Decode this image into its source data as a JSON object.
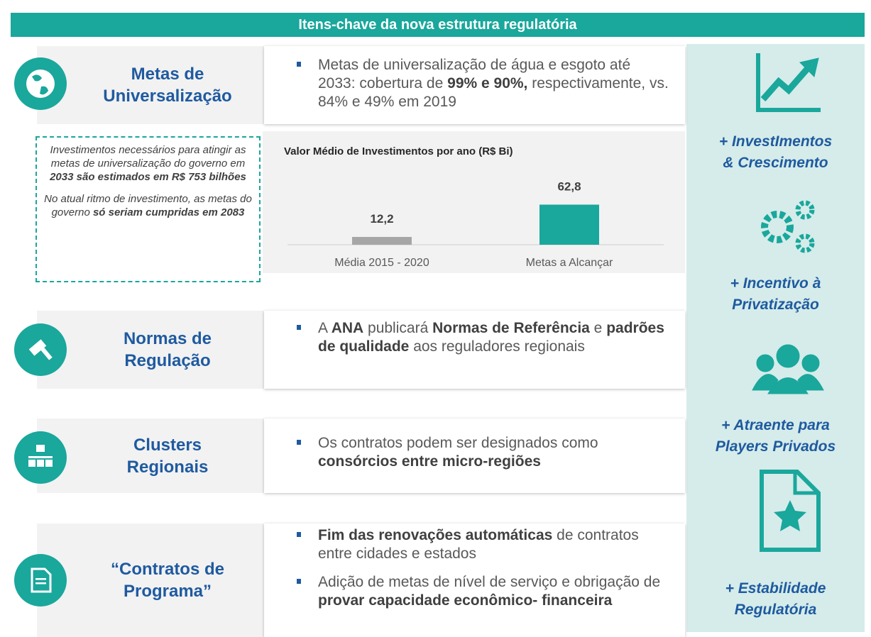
{
  "header": {
    "title": "Itens-chave da nova estrutura regulatória"
  },
  "sections": [
    {
      "title": [
        "Metas de",
        "Universalização"
      ],
      "bullets": [
        [
          {
            "text": "Metas de universalização de água e esgoto até 2033: cobertura de ",
            "bold": false
          },
          {
            "text": "99% e 90%,",
            "bold": true
          },
          {
            "text": " respectivamente, vs. 84% e 49% em 2019",
            "bold": false
          }
        ]
      ]
    },
    {
      "title": [
        "Normas de",
        "Regulação"
      ],
      "bullets": [
        [
          {
            "text": "A ",
            "bold": false
          },
          {
            "text": "ANA",
            "bold": true
          },
          {
            "text": " publicará  ",
            "bold": false
          },
          {
            "text": "Normas de Referência",
            "bold": true
          },
          {
            "text": " e ",
            "bold": false
          },
          {
            "text": "padrões de qualidade",
            "bold": true
          },
          {
            "text": " aos reguladores regionais",
            "bold": false
          }
        ]
      ]
    },
    {
      "title": [
        "Clusters",
        "Regionais"
      ],
      "bullets": [
        [
          {
            "text": "Os contratos podem ser designados como ",
            "bold": false
          },
          {
            "text": "consórcios entre micro-regiões",
            "bold": true
          }
        ]
      ]
    },
    {
      "title": [
        "“Contratos de",
        "Programa”"
      ],
      "bullets": [
        [
          {
            "text": "Fim das renovações automáticas",
            "bold": true
          },
          {
            "text": " de contratos entre cidades e estados",
            "bold": false
          }
        ],
        [
          {
            "text": "Adição de metas de nível de serviço e obrigação de ",
            "bold": false
          },
          {
            "text": "provar capacidade econômico- financeira",
            "bold": true
          }
        ]
      ]
    }
  ],
  "investment_note": [
    [
      {
        "text": "Investimentos necessários para atingir as metas de universalização do governo em ",
        "bold": false
      },
      {
        "text": "2033 são estimados em R$ 753 bilhões",
        "bold": true
      }
    ],
    [
      {
        "text": "No atual ritmo de investimento, as metas do governo ",
        "bold": false
      },
      {
        "text": "só seriam cumpridas em 2083",
        "bold": true
      }
    ]
  ],
  "chart": {
    "type": "bar",
    "title": "Valor Médio de Investimentos por ano (R$ Bi)",
    "categories": [
      "Média 2015 - 2020",
      "Metas a Alcançar"
    ],
    "values": [
      12.2,
      62.8
    ],
    "value_labels": [
      "12,2",
      "62,8"
    ],
    "colors": [
      "#a6a6a6",
      "#1aa79c"
    ]
  },
  "benefits": [
    [
      "+ InvestImentos",
      "& Crescimento"
    ],
    [
      "+ Incentivo à",
      "Privatização"
    ],
    [
      "+ Atraente para",
      "Players Privados"
    ],
    [
      "+ Estabilidade",
      "Regulatória"
    ]
  ]
}
